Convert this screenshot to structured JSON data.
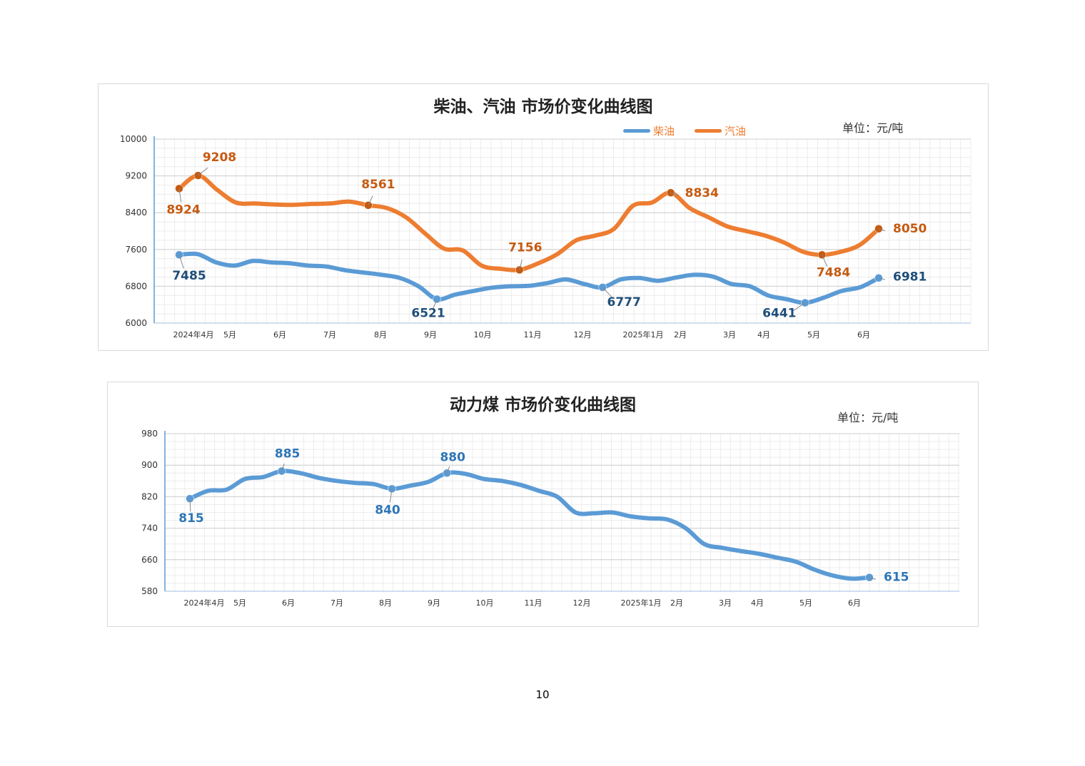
{
  "page_number": "10",
  "chart_data": [
    {
      "type": "line",
      "title": "柴油、汽油 市场价变化曲线图",
      "unit": "单位：元/吨",
      "ylim": [
        6000,
        10000
      ],
      "yticks": [
        6000,
        6800,
        7600,
        8400,
        9200,
        10000
      ],
      "month_labels": [
        "2024年4月",
        "5月",
        "6月",
        "7月",
        "8月",
        "9月",
        "10月",
        "11月",
        "12月",
        "2025年1月",
        "2月",
        "3月",
        "4月",
        "5月",
        "6月"
      ],
      "grid": true,
      "legend_position": "top",
      "series": [
        {
          "name": "柴油",
          "color": "#5b9bd5",
          "label_color": "#1f4e79",
          "values": [
            7485,
            7500,
            7320,
            7250,
            7350,
            7320,
            7300,
            7250,
            7230,
            7150,
            7100,
            7050,
            6980,
            6800,
            6521,
            6620,
            6700,
            6770,
            6800,
            6810,
            6870,
            6950,
            6850,
            6777,
            6950,
            6980,
            6920,
            6990,
            7050,
            7010,
            6850,
            6800,
            6600,
            6520,
            6441,
            6550,
            6700,
            6780,
            6981
          ],
          "annotations": [
            {
              "index": 0,
              "label": "7485"
            },
            {
              "index": 14,
              "label": "6521"
            },
            {
              "index": 23,
              "label": "6777"
            },
            {
              "index": 34,
              "label": "6441"
            },
            {
              "index": 38,
              "label": "6981"
            }
          ]
        },
        {
          "name": "汽油",
          "color": "#ed7d31",
          "label_color": "#c55a11",
          "values": [
            8924,
            9208,
            8900,
            8620,
            8600,
            8580,
            8570,
            8590,
            8600,
            8640,
            8561,
            8500,
            8300,
            7950,
            7620,
            7580,
            7250,
            7180,
            7156,
            7300,
            7500,
            7800,
            7900,
            8050,
            8550,
            8620,
            8834,
            8500,
            8300,
            8100,
            8000,
            7900,
            7750,
            7550,
            7484,
            7550,
            7700,
            8050
          ],
          "annotations": [
            {
              "index": 0,
              "label": "8924"
            },
            {
              "index": 1,
              "label": "9208"
            },
            {
              "index": 10,
              "label": "8561"
            },
            {
              "index": 18,
              "label": "7156"
            },
            {
              "index": 26,
              "label": "8834"
            },
            {
              "index": 34,
              "label": "7484"
            },
            {
              "index": 37,
              "label": "8050"
            }
          ]
        }
      ]
    },
    {
      "type": "line",
      "title": "动力煤 市场价变化曲线图",
      "unit": "单位：元/吨",
      "ylim": [
        580,
        980
      ],
      "yticks": [
        580,
        660,
        740,
        820,
        900,
        980
      ],
      "month_labels": [
        "2024年4月",
        "5月",
        "6月",
        "7月",
        "8月",
        "9月",
        "10月",
        "11月",
        "12月",
        "2025年1月",
        "2月",
        "3月",
        "4月",
        "5月",
        "6月"
      ],
      "grid": true,
      "series": [
        {
          "color": "#5b9bd5",
          "label_color": "#2e75b6",
          "values": [
            815,
            835,
            838,
            865,
            870,
            885,
            880,
            868,
            860,
            855,
            852,
            840,
            848,
            858,
            880,
            878,
            865,
            860,
            850,
            835,
            820,
            780,
            778,
            780,
            770,
            765,
            762,
            740,
            700,
            690,
            682,
            675,
            665,
            655,
            635,
            620,
            612,
            615
          ],
          "annotations": [
            {
              "index": 0,
              "label": "815"
            },
            {
              "index": 5,
              "label": "885"
            },
            {
              "index": 11,
              "label": "840"
            },
            {
              "index": 14,
              "label": "880"
            },
            {
              "index": 37,
              "label": "615"
            }
          ]
        }
      ]
    }
  ]
}
